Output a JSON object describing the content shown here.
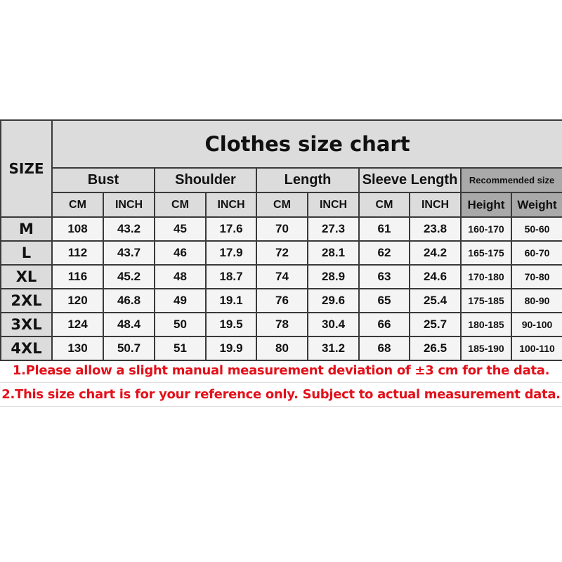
{
  "title": "Clothes size chart",
  "size_header": "SIZE",
  "groups": [
    "Bust",
    "Shoulder",
    "Length",
    "Sleeve Length"
  ],
  "recommended_header": "Recommended size",
  "units": [
    "CM",
    "INCH",
    "CM",
    "INCH",
    "CM",
    "INCH",
    "CM",
    "INCH"
  ],
  "recommended_units": [
    "Height",
    "Weight"
  ],
  "rows": [
    {
      "size": "M",
      "values": [
        "108",
        "43.2",
        "45",
        "17.6",
        "70",
        "27.3",
        "61",
        "23.8",
        "160-170",
        "50-60"
      ]
    },
    {
      "size": "L",
      "values": [
        "112",
        "43.7",
        "46",
        "17.9",
        "72",
        "28.1",
        "62",
        "24.2",
        "165-175",
        "60-70"
      ]
    },
    {
      "size": "XL",
      "values": [
        "116",
        "45.2",
        "48",
        "18.7",
        "74",
        "28.9",
        "63",
        "24.6",
        "170-180",
        "70-80"
      ]
    },
    {
      "size": "2XL",
      "values": [
        "120",
        "46.8",
        "49",
        "19.1",
        "76",
        "29.6",
        "65",
        "25.4",
        "175-185",
        "80-90"
      ]
    },
    {
      "size": "3XL",
      "values": [
        "124",
        "48.4",
        "50",
        "19.5",
        "78",
        "30.4",
        "66",
        "25.7",
        "180-185",
        "90-100"
      ]
    },
    {
      "size": "4XL",
      "values": [
        "130",
        "50.7",
        "51",
        "19.9",
        "80",
        "31.2",
        "68",
        "26.5",
        "185-190",
        "100-110"
      ]
    }
  ],
  "notes": [
    "1.Please allow a slight manual measurement deviation of ±3 cm for the data.",
    "2.This size chart is for your reference only. Subject to actual measurement data."
  ],
  "colors": {
    "header_bg": "#dcdcdc",
    "recommended_bg": "#a9a9a9",
    "note_text": "#e3101a"
  }
}
